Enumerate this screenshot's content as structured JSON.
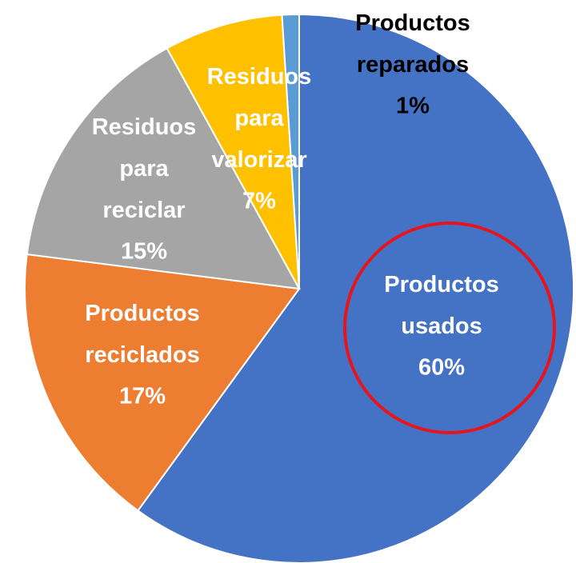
{
  "chart_data": {
    "type": "pie",
    "categories": [
      "Productos usados",
      "Productos reciclados",
      "Residuos para reciclar",
      "Residuos para valorizar",
      "Productos reparados"
    ],
    "values": [
      60,
      17,
      15,
      7,
      1
    ],
    "value_labels": [
      "60%",
      "17%",
      "15%",
      "7%",
      "1%"
    ],
    "colors": [
      "#4472c4",
      "#ed7d31",
      "#a5a5a5",
      "#ffc000",
      "#5b9bd5"
    ],
    "start_angle": 0,
    "direction": "clockwise"
  }
}
